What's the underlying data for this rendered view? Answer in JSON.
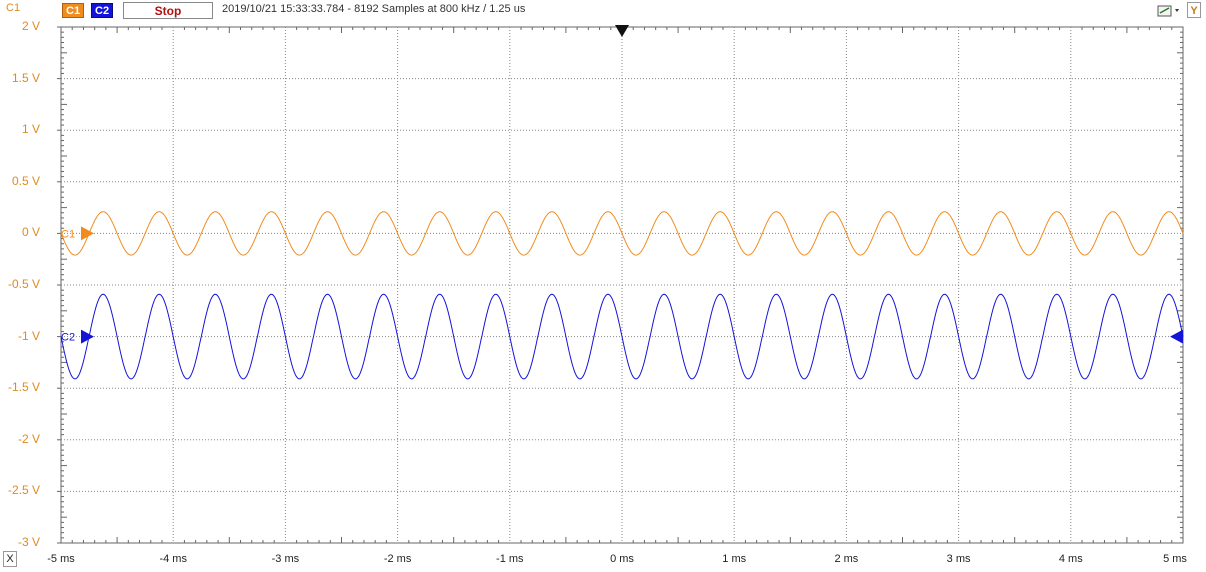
{
  "toolbar": {
    "channel_title": "C1",
    "c1_label": "C1",
    "c2_label": "C2",
    "stop_label": "Stop",
    "info": "2019/10/21  15:33:33.784 - 8192 Samples at 800 kHz / 1.25 us",
    "y_label": "Y",
    "x_label": "X"
  },
  "colors": {
    "c1": "#f08c1e",
    "c2": "#1414d8",
    "grid": "#888888"
  },
  "chart_data": {
    "type": "line",
    "x_unit": "ms",
    "y_unit": "V",
    "xlim": [
      -5,
      5
    ],
    "ylim": [
      -3,
      2
    ],
    "x_ticks": [
      "-5 ms",
      "-4 ms",
      "-3 ms",
      "-2 ms",
      "-1 ms",
      "0 ms",
      "1 ms",
      "2 ms",
      "3 ms",
      "4 ms",
      "5 ms"
    ],
    "y_ticks": [
      "2 V",
      "1.5 V",
      "1 V",
      "0.5 V",
      "0 V",
      "-0.5 V",
      "-1 V",
      "-1.5 V",
      "-2 V",
      "-2.5 V",
      "-3 V"
    ],
    "grid": true,
    "trigger_time_ms": 0,
    "series": [
      {
        "name": "C1",
        "color": "#f08c1e",
        "offset_v": 0,
        "amplitude_v": 0.21,
        "frequency_khz": 2,
        "phase_deg": 180,
        "marker_label": "C1"
      },
      {
        "name": "C2",
        "color": "#1414d8",
        "offset_v": -1,
        "amplitude_v": 0.41,
        "frequency_khz": 2,
        "phase_deg": 180,
        "marker_label": "C2"
      }
    ]
  }
}
